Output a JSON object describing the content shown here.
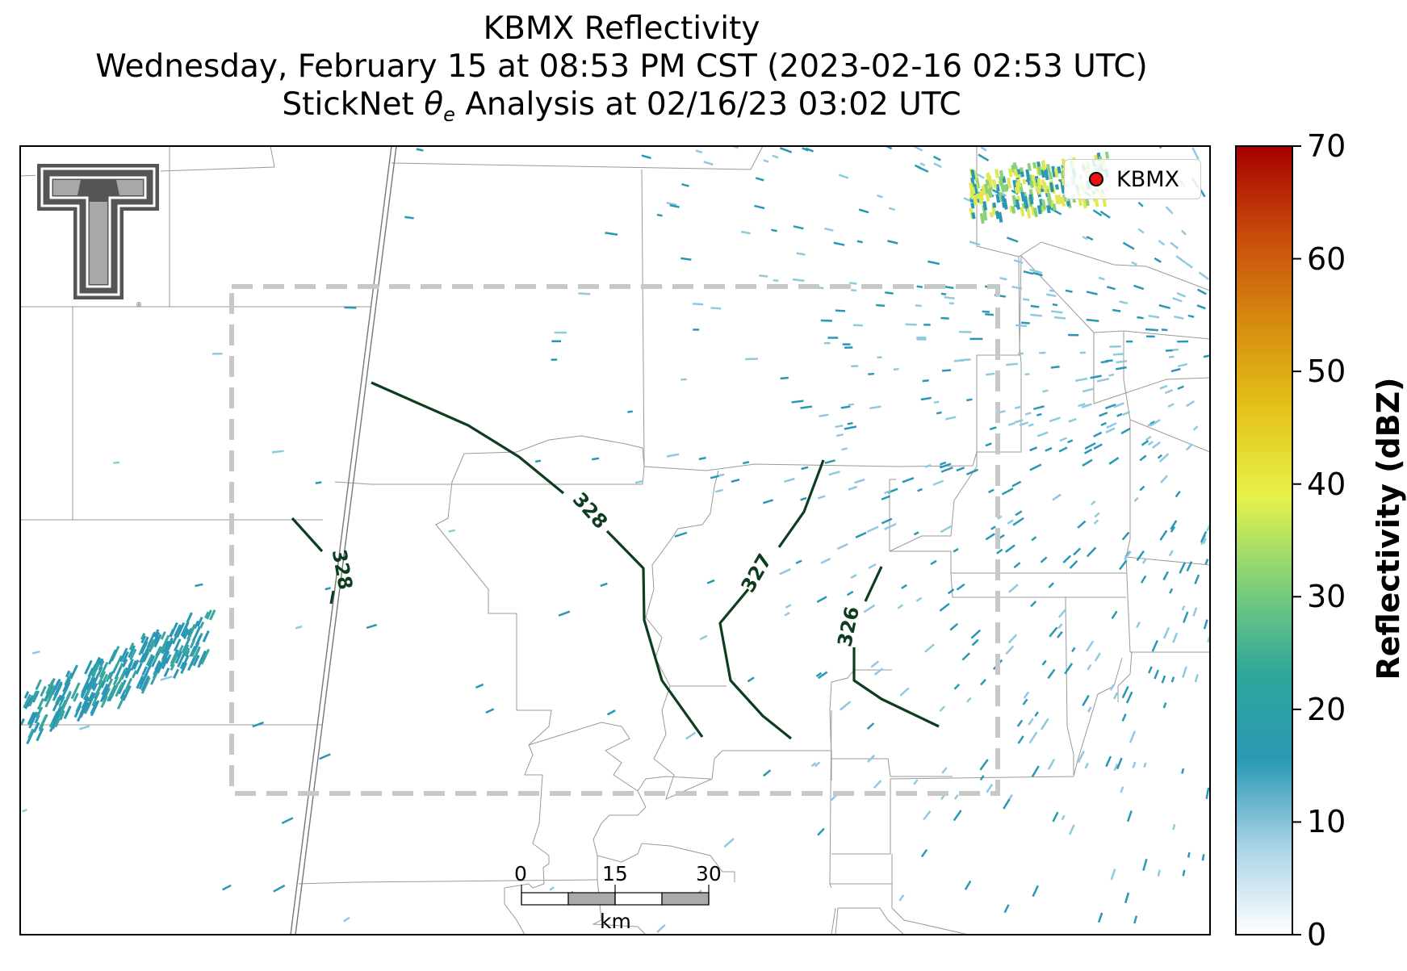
{
  "title": {
    "line1": "KBMX Reflectivity",
    "line2": "Wednesday, February 15 at 08:53 PM CST (2023-02-16 02:53 UTC)",
    "line3_prefix": "StickNet",
    "line3_symbol": "θ",
    "line3_subscript": "e",
    "line3_suffix": "Analysis at 02/16/23 03:02 UTC"
  },
  "legend": {
    "label": "KBMX",
    "marker_color": "#ee1111"
  },
  "colorbar": {
    "label": "Reflectivity (dBZ)",
    "ticks": [
      "0",
      "10",
      "20",
      "30",
      "40",
      "50",
      "60",
      "70"
    ],
    "range": [
      0,
      70
    ],
    "stops": [
      "#ffffff",
      "#a9d3e8",
      "#2a98b4",
      "#2fa79a",
      "#7fcf7a",
      "#e6f24a",
      "#e4c21a",
      "#d68a10",
      "#c84a0c",
      "#a50000"
    ]
  },
  "scale_bar": {
    "labels": [
      "0",
      "15",
      "30"
    ],
    "unit": "km"
  },
  "contours": [
    {
      "label": "328",
      "color": "#0d3d1e"
    },
    {
      "label": "328",
      "color": "#0d3d1e"
    },
    {
      "label": "327",
      "color": "#0d3d1e"
    },
    {
      "label": "326",
      "color": "#0d3d1e"
    }
  ],
  "logo": {
    "name": "texas-tech-double-t-logo"
  },
  "colors": {
    "contour": "#0d3d1e",
    "analysis_box": "#c8c8c8",
    "county_lines": "#999999",
    "echo_light": "#8fc9e0",
    "echo_mid": "#2a98b4",
    "echo_strong": "#dfe955"
  }
}
